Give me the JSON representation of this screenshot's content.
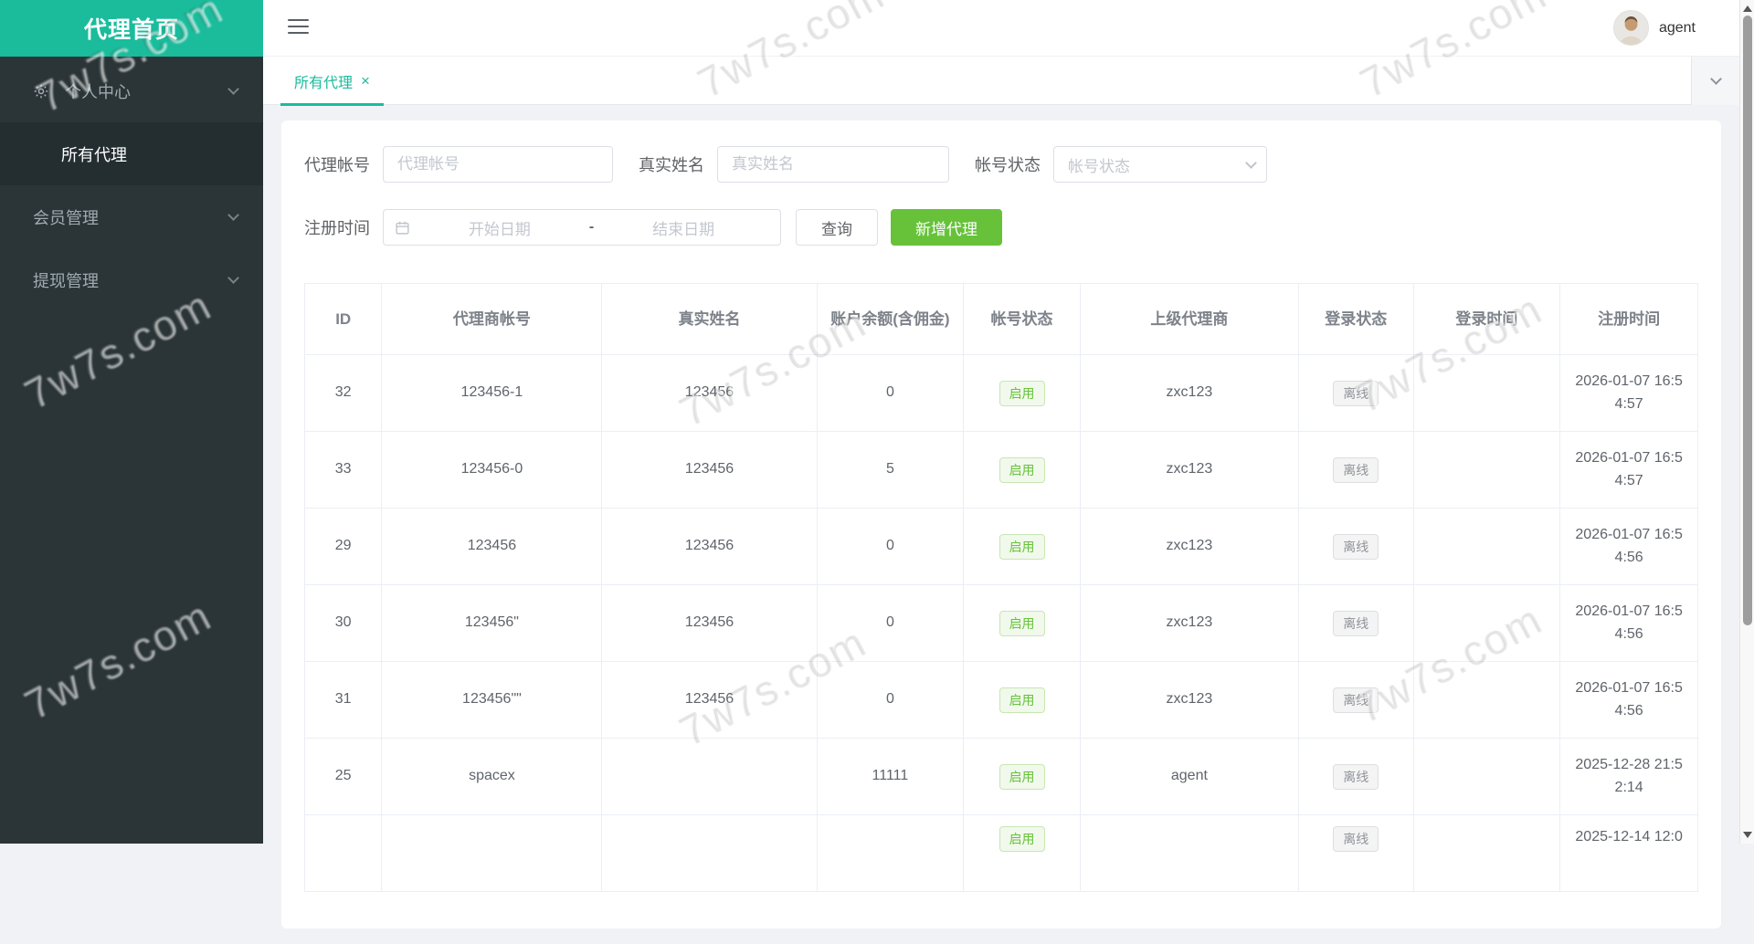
{
  "app": {
    "sidebar_title": "代理首页"
  },
  "colors": {
    "accent": "#1abc9c",
    "success_button": "#67c23a",
    "sidebar_bg": "#2b3538",
    "tag_success_text": "#67c23a",
    "tag_info_text": "#909399"
  },
  "topbar": {
    "username": "agent"
  },
  "tabbar": {
    "active_tab": "所有代理",
    "close": "×"
  },
  "sidebar": {
    "items": [
      {
        "label": "个人中心",
        "icon": "gear-icon",
        "expandable": true,
        "active": false,
        "child": false
      },
      {
        "label": "所有代理",
        "expandable": false,
        "active": true,
        "child": true
      },
      {
        "label": "会员管理",
        "expandable": true,
        "active": false,
        "child": false
      },
      {
        "label": "提现管理",
        "expandable": true,
        "active": false,
        "child": false
      }
    ]
  },
  "search_form": {
    "agent_account_label": "代理帐号",
    "agent_account_placeholder": "代理帐号",
    "agent_account_value": "",
    "real_name_label": "真实姓名",
    "real_name_placeholder": "真实姓名",
    "real_name_value": "",
    "account_status_label": "帐号状态",
    "account_status_placeholder": "帐号状态",
    "reg_time_label": "注册时间",
    "date_start_placeholder": "开始日期",
    "date_separator": "-",
    "date_end_placeholder": "结束日期",
    "search_button": "查询",
    "add_button": "新增代理"
  },
  "table": {
    "headers": [
      "ID",
      "代理商帐号",
      "真实姓名",
      "账户余额(含佣金)",
      "帐号状态",
      "上级代理商",
      "登录状态",
      "登录时间",
      "注册时间"
    ],
    "rows": [
      {
        "id": "32",
        "account": "123456-1",
        "real_name": "123456",
        "balance": "0",
        "status": "启用",
        "parent": "zxc123",
        "login_status": "离线",
        "login_time": "",
        "reg_time": "2026-01-07 16:54:57"
      },
      {
        "id": "33",
        "account": "123456-0",
        "real_name": "123456",
        "balance": "5",
        "status": "启用",
        "parent": "zxc123",
        "login_status": "离线",
        "login_time": "",
        "reg_time": "2026-01-07 16:54:57"
      },
      {
        "id": "29",
        "account": "123456",
        "real_name": "123456",
        "balance": "0",
        "status": "启用",
        "parent": "zxc123",
        "login_status": "离线",
        "login_time": "",
        "reg_time": "2026-01-07 16:54:56"
      },
      {
        "id": "30",
        "account": "123456\"",
        "real_name": "123456",
        "balance": "0",
        "status": "启用",
        "parent": "zxc123",
        "login_status": "离线",
        "login_time": "",
        "reg_time": "2026-01-07 16:54:56"
      },
      {
        "id": "31",
        "account": "123456\"\"",
        "real_name": "123456",
        "balance": "0",
        "status": "启用",
        "parent": "zxc123",
        "login_status": "离线",
        "login_time": "",
        "reg_time": "2026-01-07 16:54:56"
      },
      {
        "id": "25",
        "account": "spacex",
        "real_name": "",
        "balance": "11111",
        "status": "启用",
        "parent": "agent",
        "login_status": "离线",
        "login_time": "",
        "reg_time": "2025-12-28 21:52:14"
      },
      {
        "id": "",
        "account": "",
        "real_name": "",
        "balance": "",
        "status": "启用",
        "parent": "",
        "login_status": "离线",
        "login_time": "",
        "reg_time": "2025-12-14 12:0",
        "partial": true
      }
    ]
  },
  "watermark": {
    "text": "7w7s.com"
  }
}
